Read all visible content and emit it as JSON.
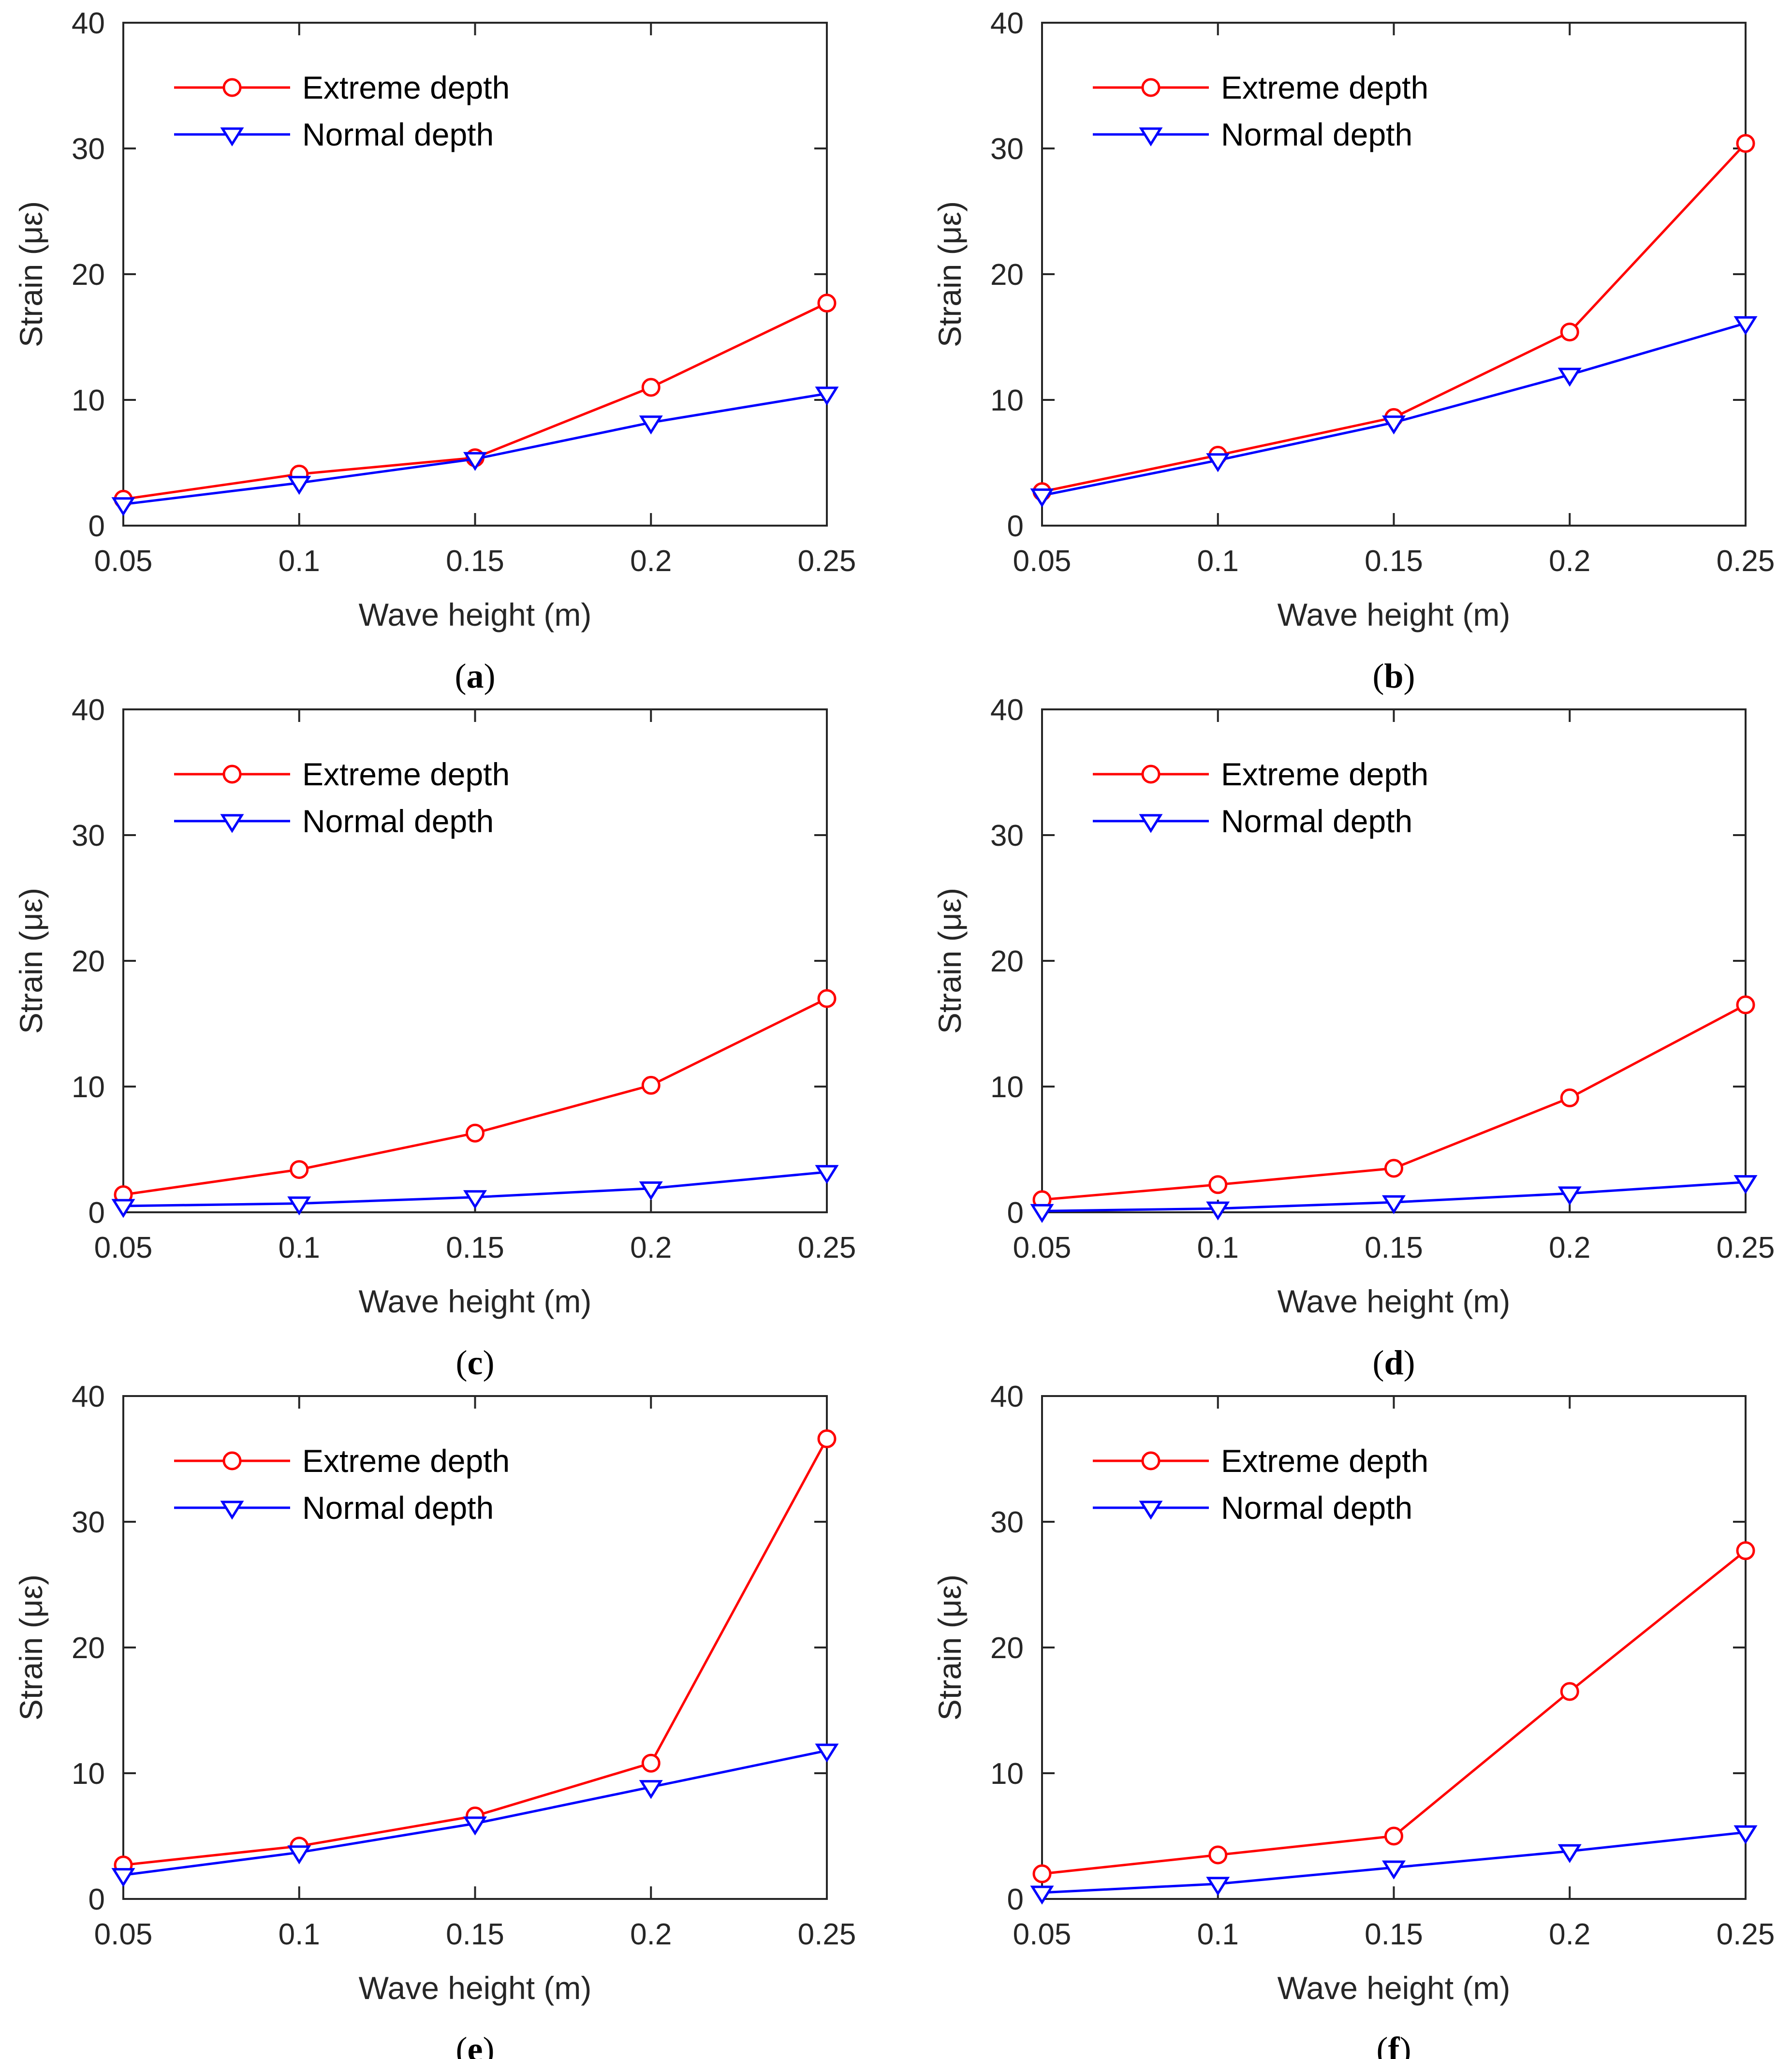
{
  "chart_data": [
    {
      "type": "line",
      "caption": "a",
      "x": [
        0.05,
        0.1,
        0.15,
        0.2,
        0.25
      ],
      "xlabel": "Wave height (m)",
      "ylabel": "Strain (με)",
      "xlim": [
        0.05,
        0.25
      ],
      "ylim": [
        0,
        40
      ],
      "xticks": [
        "0.05",
        "0.1",
        "0.15",
        "0.2",
        "0.25"
      ],
      "yticks": [
        "0",
        "10",
        "20",
        "30",
        "40"
      ],
      "grid": false,
      "legend": "top-left",
      "series": [
        {
          "name": "Extreme depth",
          "color": "#ff0000",
          "marker": "circle",
          "values": [
            2.1,
            4.1,
            5.4,
            11.0,
            17.7
          ]
        },
        {
          "name": "Normal depth",
          "color": "#0000ff",
          "marker": "triangle-down",
          "values": [
            1.7,
            3.4,
            5.3,
            8.2,
            10.5
          ]
        }
      ]
    },
    {
      "type": "line",
      "caption": "b",
      "x": [
        0.05,
        0.1,
        0.15,
        0.2,
        0.25
      ],
      "xlabel": "Wave height (m)",
      "ylabel": "Strain (με)",
      "xlim": [
        0.05,
        0.25
      ],
      "ylim": [
        0,
        40
      ],
      "xticks": [
        "0.05",
        "0.1",
        "0.15",
        "0.2",
        "0.25"
      ],
      "yticks": [
        "0",
        "10",
        "20",
        "30",
        "40"
      ],
      "grid": false,
      "legend": "top-left",
      "series": [
        {
          "name": "Extreme depth",
          "color": "#ff0000",
          "marker": "circle",
          "values": [
            2.7,
            5.6,
            8.6,
            15.4,
            30.4
          ]
        },
        {
          "name": "Normal depth",
          "color": "#0000ff",
          "marker": "triangle-down",
          "values": [
            2.4,
            5.2,
            8.2,
            12.0,
            16.1
          ]
        }
      ]
    },
    {
      "type": "line",
      "caption": "c",
      "x": [
        0.05,
        0.1,
        0.15,
        0.2,
        0.25
      ],
      "xlabel": "Wave height (m)",
      "ylabel": "Strain (με)",
      "xlim": [
        0.05,
        0.25
      ],
      "ylim": [
        0,
        40
      ],
      "xticks": [
        "0.05",
        "0.1",
        "0.15",
        "0.2",
        "0.25"
      ],
      "yticks": [
        "0",
        "10",
        "20",
        "30",
        "40"
      ],
      "grid": false,
      "legend": "top-left",
      "series": [
        {
          "name": "Extreme depth",
          "color": "#ff0000",
          "marker": "circle",
          "values": [
            1.4,
            3.4,
            6.3,
            10.1,
            17.0
          ]
        },
        {
          "name": "Normal depth",
          "color": "#0000ff",
          "marker": "triangle-down",
          "values": [
            0.5,
            0.7,
            1.2,
            1.9,
            3.2
          ]
        }
      ]
    },
    {
      "type": "line",
      "caption": "d",
      "x": [
        0.05,
        0.1,
        0.15,
        0.2,
        0.25
      ],
      "xlabel": "Wave height (m)",
      "ylabel": "Strain (με)",
      "xlim": [
        0.05,
        0.25
      ],
      "ylim": [
        0,
        40
      ],
      "xticks": [
        "0.05",
        "0.1",
        "0.15",
        "0.2",
        "0.25"
      ],
      "yticks": [
        "0",
        "10",
        "20",
        "30",
        "40"
      ],
      "grid": false,
      "legend": "top-left",
      "series": [
        {
          "name": "Extreme depth",
          "color": "#ff0000",
          "marker": "circle",
          "values": [
            1.0,
            2.2,
            3.5,
            9.1,
            16.5
          ]
        },
        {
          "name": "Normal depth",
          "color": "#0000ff",
          "marker": "triangle-down",
          "values": [
            0.1,
            0.3,
            0.8,
            1.5,
            2.4
          ]
        }
      ]
    },
    {
      "type": "line",
      "caption": "e",
      "x": [
        0.05,
        0.1,
        0.15,
        0.2,
        0.25
      ],
      "xlabel": "Wave height (m)",
      "ylabel": "Strain (με)",
      "xlim": [
        0.05,
        0.25
      ],
      "ylim": [
        0,
        40
      ],
      "xticks": [
        "0.05",
        "0.1",
        "0.15",
        "0.2",
        "0.25"
      ],
      "yticks": [
        "0",
        "10",
        "20",
        "30",
        "40"
      ],
      "grid": false,
      "legend": "top-left",
      "series": [
        {
          "name": "Extreme depth",
          "color": "#ff0000",
          "marker": "circle",
          "values": [
            2.7,
            4.2,
            6.6,
            10.8,
            36.6
          ]
        },
        {
          "name": "Normal depth",
          "color": "#0000ff",
          "marker": "triangle-down",
          "values": [
            1.9,
            3.7,
            6.0,
            8.9,
            11.8
          ]
        }
      ]
    },
    {
      "type": "line",
      "caption": "f",
      "x": [
        0.05,
        0.1,
        0.15,
        0.2,
        0.25
      ],
      "xlabel": "Wave height (m)",
      "ylabel": "Strain (με)",
      "xlim": [
        0.05,
        0.25
      ],
      "ylim": [
        0,
        40
      ],
      "xticks": [
        "0.05",
        "0.1",
        "0.15",
        "0.2",
        "0.25"
      ],
      "yticks": [
        "0",
        "10",
        "20",
        "30",
        "40"
      ],
      "grid": false,
      "legend": "top-left",
      "series": [
        {
          "name": "Extreme depth",
          "color": "#ff0000",
          "marker": "circle",
          "values": [
            2.0,
            3.5,
            5.0,
            16.5,
            27.7
          ]
        },
        {
          "name": "Normal depth",
          "color": "#0000ff",
          "marker": "triangle-down",
          "values": [
            0.5,
            1.2,
            2.5,
            3.8,
            5.3
          ]
        }
      ]
    }
  ]
}
